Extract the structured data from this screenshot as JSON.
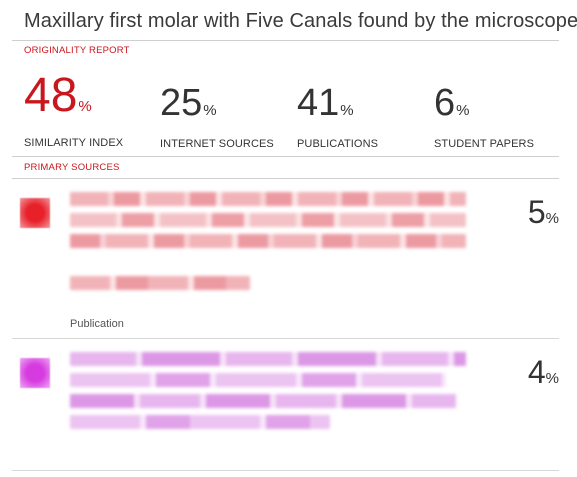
{
  "report": {
    "title": "Maxillary first molar with Five Canals found by the microscope",
    "originality_label": "ORIGINALITY REPORT",
    "primary_sources_label": "PRIMARY SOURCES",
    "percent_sign": "%"
  },
  "stats": [
    {
      "value": "48",
      "label": "SIMILARITY INDEX"
    },
    {
      "value": "25",
      "label": "INTERNET SOURCES"
    },
    {
      "value": "41",
      "label": "PUBLICATIONS"
    },
    {
      "value": "6",
      "label": "STUDENT PAPERS"
    }
  ],
  "sources": [
    {
      "percent": "5",
      "type": "Publication",
      "color": "#e8202a",
      "tint": "#f3b9bd"
    },
    {
      "percent": "4",
      "type": "",
      "color": "#d63be0",
      "tint": "#ecc0f0"
    }
  ],
  "colors": {
    "accent": "#c8171d"
  }
}
